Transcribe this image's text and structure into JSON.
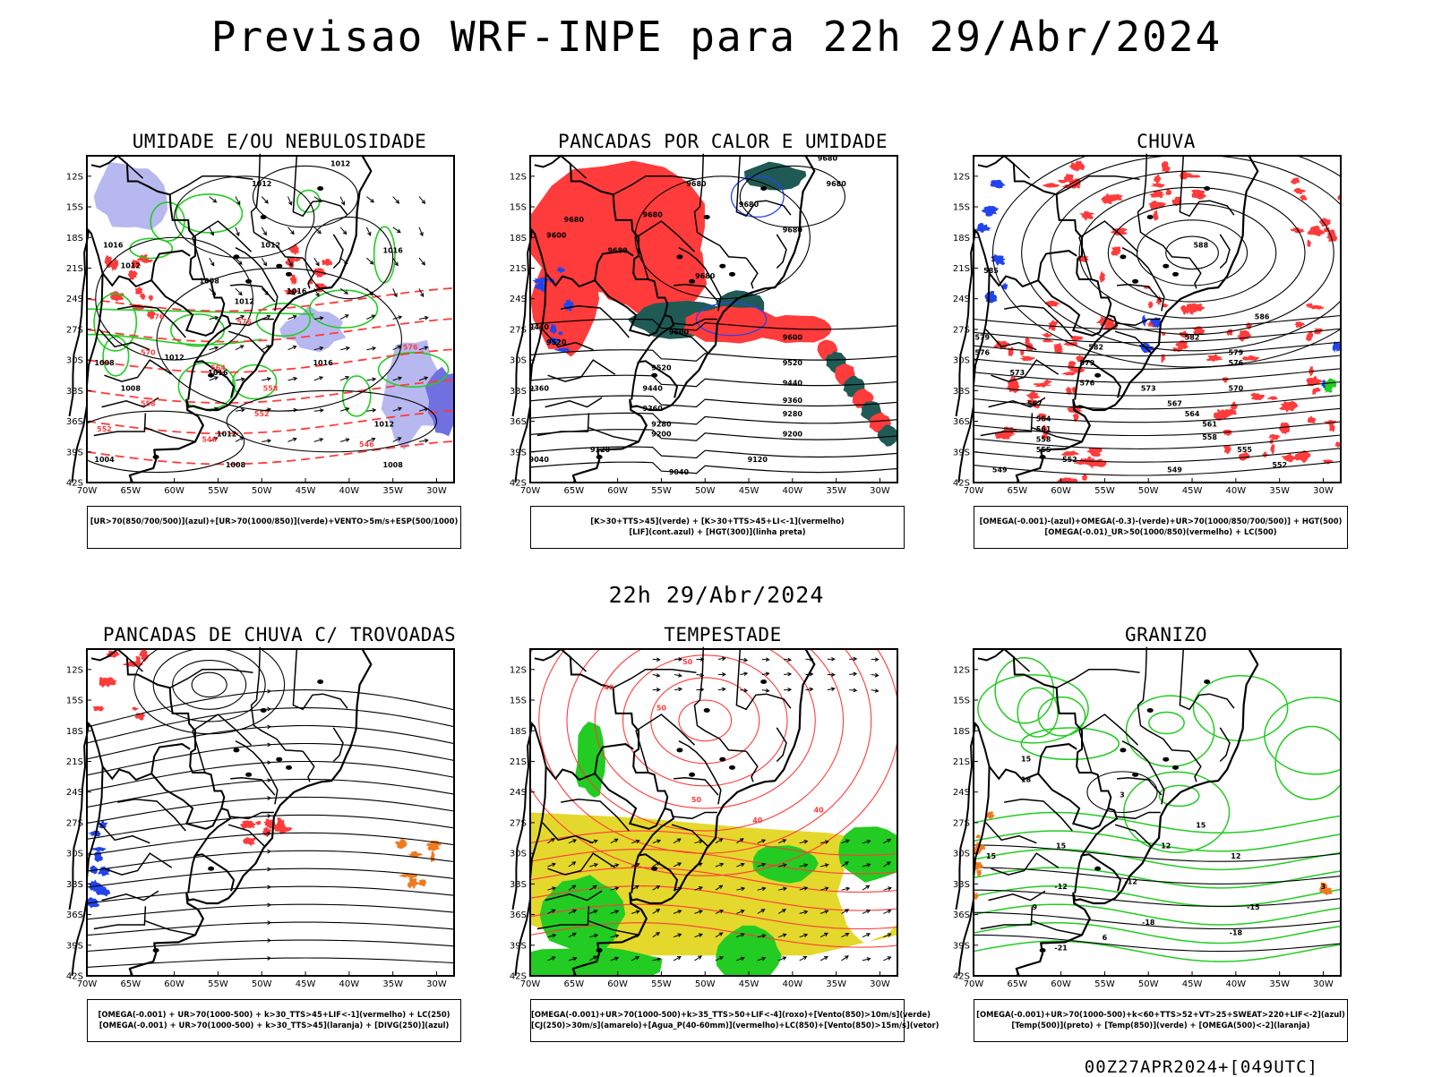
{
  "page": {
    "main_title": "Previsao WRF-INPE  para 22h 29/Abr/2024",
    "mid_title": "22h 29/Abr/2024",
    "footer": "00Z27APR2024+[049UTC]"
  },
  "axes": {
    "lat_labels": [
      "12S",
      "15S",
      "18S",
      "21S",
      "24S",
      "27S",
      "30S",
      "33S",
      "36S",
      "39S",
      "42S"
    ],
    "lon_labels": [
      "70W",
      "65W",
      "60W",
      "55W",
      "50W",
      "45W",
      "40W",
      "35W",
      "30W"
    ],
    "lat_range": [
      -42,
      -10
    ],
    "lon_range": [
      -70,
      -28
    ]
  },
  "colors": {
    "red": "#ff3b3b",
    "green": "#22cc22",
    "blue": "#2244ee",
    "lavender": "#b8b8f0",
    "darkteal": "#1f5a55",
    "yellow": "#e4d82c",
    "orange": "#f07a20",
    "contour": "#000000"
  },
  "panels": [
    {
      "title": "UMIDADE E/OU NEBULOSIDADE",
      "legend": [
        "[UR>70(850/700/500)](azul)+[UR>70(1000/850)](verde)+VENTO>5m/s+ESP(500/1000)"
      ],
      "contour_labels": [
        {
          "text": "1012",
          "lon": -41,
          "lat": -11
        },
        {
          "text": "1012",
          "lon": -50,
          "lat": -13
        },
        {
          "text": "1012",
          "lon": -49,
          "lat": -19
        },
        {
          "text": "1016",
          "lon": -35,
          "lat": -19.5
        },
        {
          "text": "1008",
          "lon": -56,
          "lat": -22.5
        },
        {
          "text": "1012",
          "lon": -52,
          "lat": -24.5
        },
        {
          "text": "1016",
          "lon": -46,
          "lat": -23.5
        },
        {
          "text": "1008",
          "lon": -68,
          "lat": -30.5
        },
        {
          "text": "1012",
          "lon": -60,
          "lat": -30
        },
        {
          "text": "1016",
          "lon": -55,
          "lat": -31.5
        },
        {
          "text": "1016",
          "lon": -43,
          "lat": -30.5
        },
        {
          "text": "1008",
          "lon": -65,
          "lat": -33
        },
        {
          "text": "1012",
          "lon": -36,
          "lat": -36.5
        },
        {
          "text": "1012",
          "lon": -54,
          "lat": -37.5
        },
        {
          "text": "1008",
          "lon": -53,
          "lat": -40.5
        },
        {
          "text": "1004",
          "lon": -68,
          "lat": -40
        },
        {
          "text": "1008",
          "lon": -35,
          "lat": -40.5
        },
        {
          "text": "1016",
          "lon": -67,
          "lat": -19
        },
        {
          "text": "1012",
          "lon": -65,
          "lat": -21
        }
      ],
      "red_labels": [
        {
          "text": "576",
          "lon": -62,
          "lat": -26
        },
        {
          "text": "570",
          "lon": -63,
          "lat": -29.5
        },
        {
          "text": "564",
          "lon": -55,
          "lat": -31
        },
        {
          "text": "558",
          "lon": -49,
          "lat": -33
        },
        {
          "text": "552",
          "lon": -50,
          "lat": -35.5
        },
        {
          "text": "558",
          "lon": -63,
          "lat": -34.5
        },
        {
          "text": "552",
          "lon": -68,
          "lat": -37
        },
        {
          "text": "546",
          "lon": -56,
          "lat": -38
        },
        {
          "text": "546",
          "lon": -38,
          "lat": -38.5
        },
        {
          "text": "576",
          "lon": -52,
          "lat": -26.5
        },
        {
          "text": "576",
          "lon": -33,
          "lat": -29
        }
      ]
    },
    {
      "title": "PANCADAS POR CALOR E UMIDADE",
      "legend": [
        "[K>30+TTS>45](verde) + [K>30+TTS>45+LI<-1](vermelho)",
        "[LIF](cont.azul) + [HGT(300)](linha preta)"
      ],
      "contour_labels": [
        {
          "text": "9680",
          "lon": -36,
          "lat": -10.5
        },
        {
          "text": "9680",
          "lon": -35,
          "lat": -13
        },
        {
          "text": "9680",
          "lon": -51,
          "lat": -13
        },
        {
          "text": "9680",
          "lon": -45,
          "lat": -15
        },
        {
          "text": "9680",
          "lon": -56,
          "lat": -16
        },
        {
          "text": "9680",
          "lon": -40,
          "lat": -17.5
        },
        {
          "text": "9680",
          "lon": -65,
          "lat": -16.5
        },
        {
          "text": "9600",
          "lon": -67,
          "lat": -18
        },
        {
          "text": "9680",
          "lon": -60,
          "lat": -19.5
        },
        {
          "text": "9680",
          "lon": -50,
          "lat": -22
        },
        {
          "text": "9440",
          "lon": -69,
          "lat": -27
        },
        {
          "text": "9520",
          "lon": -67,
          "lat": -28.5
        },
        {
          "text": "9600",
          "lon": -53,
          "lat": -27.5
        },
        {
          "text": "9600",
          "lon": -40,
          "lat": -28
        },
        {
          "text": "9520",
          "lon": -55,
          "lat": -31
        },
        {
          "text": "9520",
          "lon": -40,
          "lat": -30.5
        },
        {
          "text": "9440",
          "lon": -56,
          "lat": -33
        },
        {
          "text": "9440",
          "lon": -40,
          "lat": -32.5
        },
        {
          "text": "9360",
          "lon": -56,
          "lat": -35
        },
        {
          "text": "9360",
          "lon": -40,
          "lat": -34.2
        },
        {
          "text": "9280",
          "lon": -55,
          "lat": -36.5
        },
        {
          "text": "9280",
          "lon": -40,
          "lat": -35.5
        },
        {
          "text": "9200",
          "lon": -55,
          "lat": -37.5
        },
        {
          "text": "9200",
          "lon": -40,
          "lat": -37.5
        },
        {
          "text": "9120",
          "lon": -62,
          "lat": -39
        },
        {
          "text": "9120",
          "lon": -44,
          "lat": -40
        },
        {
          "text": "9040",
          "lon": -69,
          "lat": -40
        },
        {
          "text": "9040",
          "lon": -53,
          "lat": -41.2
        },
        {
          "text": "9360",
          "lon": -69,
          "lat": -33
        }
      ]
    },
    {
      "title": "CHUVA",
      "legend": [
        "[OMEGA(-0.001)-(azul)+OMEGA(-0.3)-(verde)+UR>70(1000/850/700/500)] + HGT(500)",
        "[OMEGA(-0.01)_UR>50(1000/850)(vermelho) + LC(500)"
      ],
      "contour_labels": [
        {
          "text": "588",
          "lon": -44,
          "lat": -19
        },
        {
          "text": "586",
          "lon": -37,
          "lat": -26
        },
        {
          "text": "582",
          "lon": -45,
          "lat": -28
        },
        {
          "text": "579",
          "lon": -40,
          "lat": -29.5
        },
        {
          "text": "576",
          "lon": -40,
          "lat": -30.5
        },
        {
          "text": "573",
          "lon": -50,
          "lat": -33
        },
        {
          "text": "570",
          "lon": -40,
          "lat": -33
        },
        {
          "text": "567",
          "lon": -47,
          "lat": -34.5
        },
        {
          "text": "564",
          "lon": -45,
          "lat": -35.5
        },
        {
          "text": "561",
          "lon": -43,
          "lat": -36.5
        },
        {
          "text": "558",
          "lon": -43,
          "lat": -37.8
        },
        {
          "text": "555",
          "lon": -39,
          "lat": -39
        },
        {
          "text": "552",
          "lon": -35,
          "lat": -40.5
        },
        {
          "text": "549",
          "lon": -47,
          "lat": -41
        },
        {
          "text": "579",
          "lon": -69,
          "lat": -28
        },
        {
          "text": "576",
          "lon": -69,
          "lat": -29.5
        },
        {
          "text": "573",
          "lon": -65,
          "lat": -31.5
        },
        {
          "text": "567",
          "lon": -63,
          "lat": -34.5
        },
        {
          "text": "564",
          "lon": -62,
          "lat": -36
        },
        {
          "text": "561",
          "lon": -62,
          "lat": -37
        },
        {
          "text": "558",
          "lon": -62,
          "lat": -38
        },
        {
          "text": "555",
          "lon": -62,
          "lat": -39
        },
        {
          "text": "552",
          "lon": -59,
          "lat": -40
        },
        {
          "text": "549",
          "lon": -67,
          "lat": -41
        },
        {
          "text": "582",
          "lon": -56,
          "lat": -29
        },
        {
          "text": "579",
          "lon": -57,
          "lat": -30.5
        },
        {
          "text": "576",
          "lon": -57,
          "lat": -32.5
        },
        {
          "text": "585",
          "lon": -68,
          "lat": -21.5
        }
      ]
    },
    {
      "title": "PANCADAS DE CHUVA C/ TROVOADAS",
      "legend": [
        "[OMEGA(-0.001) + UR>70(1000-500) + k>30_TTS>45+LIF<-1](vermelho) + LC(250)",
        "[OMEGA(-0.001) + UR>70(1000-500) + k>30_TTS>45](laranja) + [DIVG(250)](azul)"
      ],
      "contour_labels": []
    },
    {
      "title": "TEMPESTADE",
      "legend": [
        "[OMEGA(-0.001)+UR>70(1000-500)+k>35_TTS>50+LIF<-4](roxo)+[Vento(850)>10m/s](verde)",
        "[CJ(250)>30m/s](amarelo)+[Agua_P(40-60mm)](vermelho)+LC(850)+[Vento(850)>15m/s](vetor)"
      ],
      "contour_labels": [
        {
          "text": "50",
          "lon": -52,
          "lat": -11.5
        },
        {
          "text": "40",
          "lon": -61,
          "lat": -14
        },
        {
          "text": "50",
          "lon": -55,
          "lat": -16
        },
        {
          "text": "40",
          "lon": -44,
          "lat": -27
        },
        {
          "text": "40",
          "lon": -37,
          "lat": -26
        },
        {
          "text": "50",
          "lon": -51,
          "lat": -25
        }
      ]
    },
    {
      "title": "GRANIZO",
      "legend": [
        "[OMEGA(-0.001)+UR>70(1000-500)+k<60+TTS>52+VT>25+SWEAT>220+LIF<-2](azul)",
        "[Temp(500)](preto) + [Temp(850)](verde) + [OMEGA(500)<-2](laranja)"
      ],
      "contour_labels": [
        {
          "text": "3",
          "lon": -53,
          "lat": -24.5
        },
        {
          "text": "15",
          "lon": -64,
          "lat": -21
        },
        {
          "text": "18",
          "lon": -64,
          "lat": -23
        },
        {
          "text": "15",
          "lon": -44,
          "lat": -27.5
        },
        {
          "text": "-12",
          "lon": -60,
          "lat": -33.5
        },
        {
          "text": "-12",
          "lon": -52,
          "lat": -33
        },
        {
          "text": "-15",
          "lon": -38,
          "lat": -35.5
        },
        {
          "text": "-18",
          "lon": -50,
          "lat": -37
        },
        {
          "text": "-18",
          "lon": -40,
          "lat": -38
        },
        {
          "text": "-21",
          "lon": -60,
          "lat": -39.5
        },
        {
          "text": "15",
          "lon": -60,
          "lat": -29.5
        },
        {
          "text": "15",
          "lon": -68,
          "lat": -30.5
        },
        {
          "text": "12",
          "lon": -48,
          "lat": -29.5
        },
        {
          "text": "12",
          "lon": -40,
          "lat": -30.5
        },
        {
          "text": "9",
          "lon": -63,
          "lat": -35.5
        },
        {
          "text": "6",
          "lon": -55,
          "lat": -38.5
        },
        {
          "text": "3",
          "lon": -30,
          "lat": -33.5
        }
      ]
    }
  ]
}
